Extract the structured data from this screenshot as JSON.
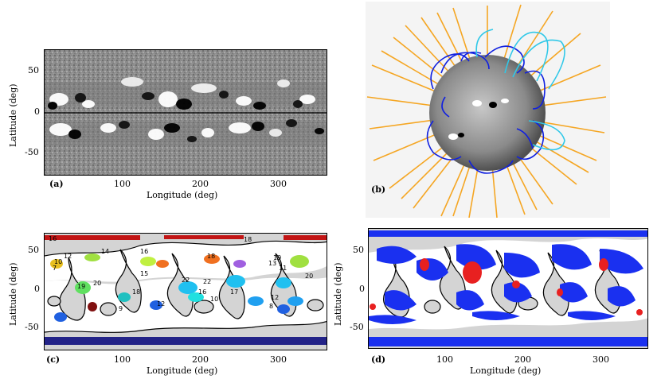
{
  "panels": {
    "a": {
      "letter": "(a)",
      "xlabel": "Longitude (deg)",
      "ylabel": "Latitude (deg)",
      "xticks": [
        "100",
        "200",
        "300"
      ],
      "yticks": [
        "50",
        "0",
        "-50"
      ]
    },
    "b": {
      "letter": "(b)"
    },
    "c": {
      "letter": "(c)",
      "xlabel": "Longitude (deg)",
      "ylabel": "Latitude (deg)",
      "xticks": [
        "100",
        "200",
        "300"
      ],
      "yticks": [
        "50",
        "0",
        "-50"
      ],
      "region_labels": [
        "16",
        "18",
        "14",
        "16",
        "12",
        "18",
        "19",
        "22",
        "20",
        "10",
        "15",
        "11",
        "18",
        "16",
        "20",
        "12",
        "22",
        "10",
        "17",
        "12",
        "13",
        "8",
        "9",
        "7",
        "19"
      ]
    },
    "d": {
      "letter": "(d)",
      "xlabel": "Longitude (deg)",
      "ylabel": "Latitude (deg)",
      "xticks": [
        "100",
        "200",
        "300"
      ],
      "yticks": [
        "50",
        "0",
        "-50"
      ]
    }
  },
  "colors": {
    "field_line_open": "#f5a623",
    "field_line_closed_blue": "#1020e0",
    "field_line_closed_cyan": "#30c8e8",
    "region_gray": "#d4d4d4",
    "red": "#e82020",
    "blue": "#1a30f0"
  }
}
